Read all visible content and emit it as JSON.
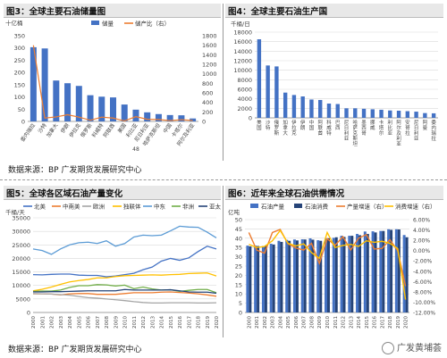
{
  "panels": {
    "p3": {
      "title": "图3：全球主要石油储量图"
    },
    "p4": {
      "title": "图4：全球主要石油生产国"
    },
    "p5": {
      "title": "图5：全球各区域石油产量变化"
    },
    "p6": {
      "title": "图6：近年来全球石油供需情况"
    }
  },
  "sources": {
    "top": "数据来源：BP 广发期货发展研究中心",
    "bottom": "数据来源：BP 广发期货发展研究中心"
  },
  "watermark": "广发黄埔荟",
  "colors": {
    "blue": "#4472c4",
    "orange": "#ed7d31",
    "gray": "#a5a5a5",
    "yellow": "#ffc000",
    "lightblue": "#5b9bd5",
    "green": "#70ad47",
    "navy": "#264478",
    "grid": "#d9d9d9",
    "axis": "#888888",
    "text": "#444444"
  },
  "chart_data": [
    {
      "id": "p3",
      "type": "bar",
      "ylabel": "十亿桶",
      "ylim": [
        0,
        350
      ],
      "yticks": [
        0,
        50,
        100,
        150,
        200,
        250,
        300,
        350
      ],
      "y2lim": [
        0,
        1800
      ],
      "y2ticks": [
        0,
        200,
        400,
        600,
        800,
        1000,
        1200,
        1400,
        1600,
        1800
      ],
      "categories": [
        "委内瑞拉",
        "沙特",
        "加拿大",
        "伊朗",
        "伊拉克",
        "俄罗斯",
        "科威特",
        "阿联酋",
        "美国",
        "利比亚",
        "尼日利亚",
        "哈萨克斯坦",
        "中国",
        "卡塔尔",
        "阿尔及利亚"
      ],
      "axis_note": "48",
      "series": [
        {
          "name": "储量",
          "kind": "bar",
          "axis": "left",
          "values": [
            303,
            298,
            167,
            156,
            145,
            107,
            101,
            98,
            69,
            48,
            37,
            30,
            26,
            25,
            12
          ]
        },
        {
          "name": "储产比（右）",
          "kind": "line",
          "axis": "right",
          "values": [
            1600,
            70,
            95,
            140,
            90,
            25,
            90,
            70,
            11,
            100,
            45,
            40,
            18,
            36,
            20
          ]
        }
      ]
    },
    {
      "id": "p4",
      "type": "bar",
      "ylabel": "千桶/日",
      "ylim": [
        0,
        18000
      ],
      "yticks": [
        0,
        2000,
        4000,
        6000,
        8000,
        10000,
        12000,
        14000,
        16000,
        18000
      ],
      "categories": [
        "美国",
        "沙特",
        "俄罗斯",
        "加拿大",
        "伊拉克",
        "伊朗",
        "中国",
        "阿联酋",
        "科威特",
        "巴西",
        "尼日利亚",
        "哈萨克斯坦",
        "墨西哥",
        "挪威",
        "卡塔尔",
        "利比亚",
        "阿尔及利亚",
        "安哥拉",
        "尼日利亚",
        "阿曼",
        "委内瑞拉"
      ],
      "series": [
        {
          "name": "产量",
          "values": [
            16500,
            11000,
            10800,
            5300,
            4800,
            4500,
            3850,
            3750,
            3000,
            2900,
            2000,
            2000,
            1900,
            1800,
            1700,
            1550,
            1500,
            1400,
            1300,
            1000,
            950
          ]
        }
      ]
    },
    {
      "id": "p5",
      "type": "line",
      "ylabel": "千桶/天",
      "ylim": [
        0,
        35000
      ],
      "yticks": [
        0,
        5000,
        10000,
        15000,
        20000,
        25000,
        30000,
        35000
      ],
      "x": [
        "2000",
        "2001",
        "2002",
        "2003",
        "2004",
        "2005",
        "2006",
        "2007",
        "2008",
        "2009",
        "2010",
        "2011",
        "2012",
        "2013",
        "2014",
        "2015",
        "2016",
        "2017",
        "2018",
        "2019",
        "2020"
      ],
      "series": [
        {
          "name": "北美",
          "color": "#4472c4",
          "values": [
            14000,
            13900,
            14100,
            14200,
            14200,
            13800,
            13700,
            13700,
            13200,
            13500,
            14000,
            14500,
            15800,
            16800,
            19000,
            20000,
            19300,
            20200,
            22500,
            24500,
            23500
          ]
        },
        {
          "name": "中南美",
          "color": "#ed7d31",
          "values": [
            6900,
            6900,
            6800,
            6500,
            6900,
            7000,
            7000,
            6700,
            6700,
            6700,
            7000,
            7300,
            7300,
            7300,
            7500,
            7600,
            7400,
            7200,
            6900,
            6500,
            6000
          ]
        },
        {
          "name": "欧洲",
          "color": "#a5a5a5",
          "values": [
            7000,
            6900,
            6800,
            6600,
            6400,
            5900,
            5500,
            5300,
            5000,
            4700,
            4400,
            4000,
            3700,
            3500,
            3500,
            3600,
            3600,
            3600,
            3500,
            3500,
            3600
          ]
        },
        {
          "name": "独联体",
          "color": "#ffc000",
          "values": [
            8000,
            8600,
            9400,
            10400,
            11300,
            11800,
            12200,
            12800,
            12800,
            13300,
            13600,
            13700,
            13800,
            13900,
            13800,
            14000,
            14100,
            14400,
            14500,
            14600,
            13500
          ]
        },
        {
          "name": "中东",
          "color": "#5b9bd5",
          "values": [
            23500,
            22900,
            21500,
            23500,
            25000,
            25800,
            26000,
            25500,
            26500,
            24500,
            25500,
            27900,
            28600,
            28400,
            28600,
            30200,
            31900,
            31600,
            31500,
            29700,
            27600
          ]
        },
        {
          "name": "非洲",
          "color": "#70ad47",
          "values": [
            7800,
            7900,
            7900,
            8300,
            9300,
            9900,
            9900,
            10300,
            10200,
            9800,
            10100,
            8800,
            9400,
            8700,
            8300,
            8400,
            7800,
            8200,
            8500,
            8500,
            7300
          ]
        },
        {
          "name": "亚太",
          "color": "#264478",
          "values": [
            7600,
            7600,
            7700,
            7700,
            7800,
            7900,
            8000,
            8000,
            8000,
            8000,
            8500,
            8300,
            8300,
            8300,
            8300,
            8400,
            8000,
            7600,
            7500,
            7500,
            7100
          ]
        }
      ]
    },
    {
      "id": "p6",
      "type": "bar",
      "ylabel": "亿吨",
      "ylim": [
        0,
        50
      ],
      "yticks": [
        0,
        5,
        10,
        15,
        20,
        25,
        30,
        35,
        40,
        45,
        50
      ],
      "y2lim": [
        -12,
        6
      ],
      "y2ticks": [
        -12,
        -10,
        -8,
        -6,
        -4,
        -2,
        0,
        2,
        4,
        6
      ],
      "x": [
        "2000",
        "2001",
        "2002",
        "2003",
        "2004",
        "2005",
        "2006",
        "2007",
        "2008",
        "2009",
        "2010",
        "2011",
        "2012",
        "2013",
        "2014",
        "2015",
        "2016",
        "2017",
        "2018",
        "2019",
        "2020"
      ],
      "series": [
        {
          "name": "石油产量",
          "kind": "bar",
          "axis": "left",
          "color": "#4472c4",
          "values": [
            36.0,
            36.0,
            35.8,
            37.0,
            38.6,
            39.1,
            39.3,
            39.4,
            39.9,
            38.9,
            39.8,
            40.2,
            41.3,
            41.3,
            42.3,
            43.6,
            43.7,
            43.9,
            44.8,
            44.8,
            41.7
          ]
        },
        {
          "name": "石油消费",
          "kind": "bar",
          "axis": "left",
          "color": "#264478",
          "values": [
            35.6,
            35.8,
            36.1,
            36.6,
            38.0,
            38.6,
            38.8,
            39.3,
            39.2,
            38.6,
            40.0,
            40.5,
            40.7,
            41.3,
            41.6,
            42.3,
            43.1,
            43.9,
            44.5,
            44.7,
            40.5
          ]
        },
        {
          "name": "产量增速（右）",
          "kind": "line",
          "axis": "right",
          "color": "#ed7d31",
          "values": [
            3.5,
            0.1,
            -0.5,
            3.5,
            4.1,
            1.3,
            0.5,
            0.1,
            1.4,
            -2.5,
            2.3,
            1.0,
            2.7,
            0.1,
            2.4,
            3.1,
            0.3,
            0.4,
            2.1,
            0.0,
            -6.9
          ]
        },
        {
          "name": "消费增速（右）",
          "kind": "line",
          "axis": "right",
          "color": "#ffc000",
          "values": [
            1.2,
            0.6,
            0.8,
            1.9,
            3.9,
            1.4,
            0.9,
            1.3,
            -0.4,
            -1.5,
            3.5,
            0.6,
            1.0,
            1.2,
            0.8,
            1.9,
            1.6,
            1.8,
            1.4,
            0.4,
            -9.5
          ]
        }
      ]
    }
  ]
}
